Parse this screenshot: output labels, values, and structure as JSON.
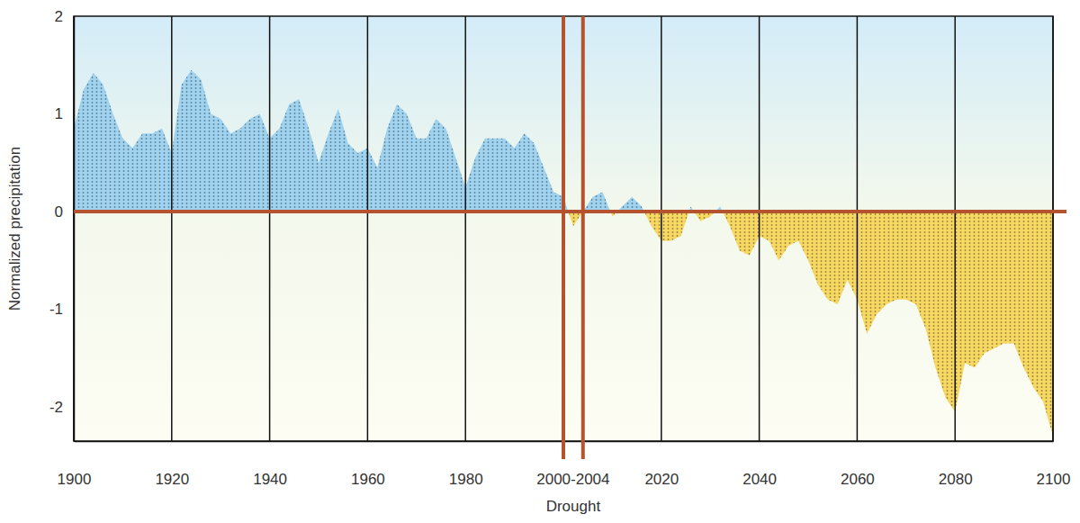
{
  "chart_data": {
    "type": "area",
    "x_label": "Drought",
    "y_label": "Normalized precipitation",
    "x": [
      1900,
      1902,
      1904,
      1906,
      1908,
      1910,
      1912,
      1914,
      1916,
      1918,
      1920,
      1922,
      1924,
      1926,
      1928,
      1930,
      1932,
      1934,
      1936,
      1938,
      1940,
      1942,
      1944,
      1946,
      1948,
      1950,
      1952,
      1954,
      1956,
      1958,
      1960,
      1962,
      1964,
      1966,
      1968,
      1970,
      1972,
      1974,
      1976,
      1978,
      1980,
      1982,
      1984,
      1986,
      1988,
      1990,
      1992,
      1994,
      1996,
      1998,
      2000,
      2002,
      2004,
      2006,
      2008,
      2010,
      2012,
      2014,
      2016,
      2018,
      2020,
      2022,
      2024,
      2026,
      2028,
      2030,
      2032,
      2034,
      2036,
      2038,
      2040,
      2042,
      2044,
      2046,
      2048,
      2050,
      2052,
      2054,
      2056,
      2058,
      2060,
      2062,
      2064,
      2066,
      2068,
      2070,
      2072,
      2074,
      2076,
      2078,
      2080,
      2082,
      2084,
      2086,
      2088,
      2090,
      2092,
      2094,
      2096,
      2098,
      2100
    ],
    "values": [
      0.85,
      1.25,
      1.42,
      1.3,
      1.0,
      0.75,
      0.65,
      0.8,
      0.8,
      0.85,
      0.6,
      1.3,
      1.45,
      1.35,
      1.0,
      0.95,
      0.8,
      0.85,
      0.95,
      1.0,
      0.75,
      0.85,
      1.1,
      1.15,
      0.85,
      0.5,
      0.8,
      1.05,
      0.7,
      0.6,
      0.65,
      0.45,
      0.85,
      1.1,
      1.0,
      0.75,
      0.75,
      0.95,
      0.85,
      0.55,
      0.25,
      0.55,
      0.75,
      0.75,
      0.75,
      0.65,
      0.8,
      0.7,
      0.45,
      0.2,
      0.15,
      -0.15,
      0.0,
      0.15,
      0.2,
      -0.05,
      0.05,
      0.15,
      0.05,
      -0.15,
      -0.3,
      -0.3,
      -0.25,
      0.05,
      -0.1,
      -0.05,
      0.05,
      -0.15,
      -0.4,
      -0.45,
      -0.25,
      -0.3,
      -0.5,
      -0.35,
      -0.3,
      -0.5,
      -0.75,
      -0.9,
      -0.95,
      -0.7,
      -0.9,
      -1.25,
      -1.05,
      -0.95,
      -0.9,
      -0.9,
      -0.95,
      -1.2,
      -1.6,
      -1.9,
      -2.05,
      -1.55,
      -1.6,
      -1.45,
      -1.4,
      -1.35,
      -1.35,
      -1.6,
      -1.8,
      -1.95,
      -2.3
    ],
    "colors": [
      "#9fd3f0",
      "#f6d862"
    ],
    "xlim": [
      1900,
      2100
    ],
    "xticks": [
      1900,
      1920,
      1940,
      1960,
      1980,
      2020,
      2040,
      2060,
      2080,
      2100
    ],
    "ylim": [
      -2.35,
      2
    ],
    "yticks": [
      2,
      1,
      0,
      -1,
      -2
    ],
    "grid": "x",
    "highlight": {
      "range": [
        2000,
        2004
      ],
      "label": "2000-2004"
    }
  }
}
